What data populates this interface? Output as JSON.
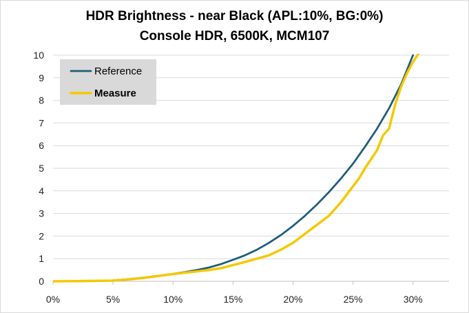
{
  "chart_data": {
    "type": "line",
    "title": "HDR Brightness - near Black (APL:10%, BG:0%)",
    "subtitle": "Console HDR, 6500K, MCM107",
    "xlabel": "",
    "ylabel": "",
    "xlim": [
      0,
      33
    ],
    "ylim": [
      0,
      10
    ],
    "x_ticks": [
      "0%",
      "5%",
      "10%",
      "15%",
      "20%",
      "25%",
      "30%"
    ],
    "y_ticks": [
      "0",
      "1",
      "2",
      "3",
      "4",
      "5",
      "6",
      "7",
      "8",
      "9",
      "10"
    ],
    "grid": "horizontal",
    "legend_position": "top-left",
    "series": [
      {
        "name": "Reference",
        "color": "#1f5c7a",
        "x": [
          0,
          2,
          4,
          5,
          6,
          7,
          8,
          9,
          10,
          11,
          12,
          13,
          14,
          15,
          16,
          17,
          18,
          19,
          20,
          21,
          22,
          23,
          24,
          25,
          26,
          27,
          28,
          29,
          30
        ],
        "y": [
          0,
          0.01,
          0.02,
          0.04,
          0.08,
          0.13,
          0.19,
          0.26,
          0.33,
          0.41,
          0.5,
          0.61,
          0.76,
          0.95,
          1.15,
          1.4,
          1.7,
          2.05,
          2.45,
          2.9,
          3.4,
          3.95,
          4.55,
          5.2,
          5.95,
          6.75,
          7.65,
          8.7,
          10.0
        ]
      },
      {
        "name": "Measure",
        "color": "#f5c800",
        "x": [
          0,
          2,
          4,
          5,
          6,
          7,
          8,
          9,
          10,
          11,
          12,
          13,
          14,
          15,
          16,
          17,
          18,
          19,
          20,
          21,
          22,
          23,
          24,
          25,
          25.5,
          26,
          27,
          27.5,
          28,
          28.5,
          29,
          29.5,
          30,
          30.5
        ],
        "y": [
          0,
          0.01,
          0.02,
          0.03,
          0.07,
          0.12,
          0.18,
          0.25,
          0.32,
          0.38,
          0.44,
          0.5,
          0.58,
          0.72,
          0.85,
          1.0,
          1.15,
          1.4,
          1.7,
          2.1,
          2.5,
          2.9,
          3.5,
          4.2,
          4.55,
          5.0,
          5.8,
          6.45,
          6.75,
          7.8,
          8.6,
          9.2,
          9.7,
          10.1
        ]
      }
    ]
  }
}
